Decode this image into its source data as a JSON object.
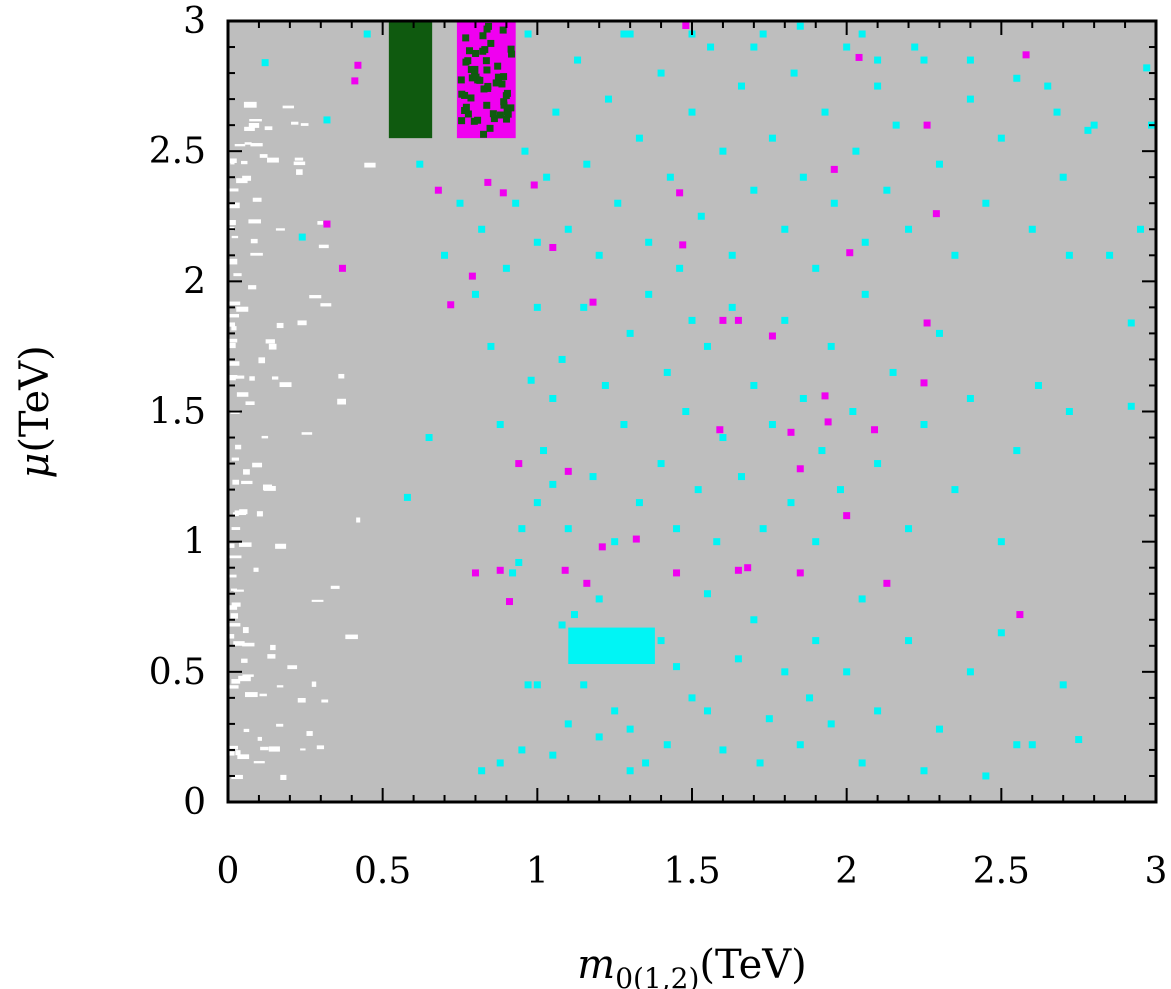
{
  "chart_data": {
    "type": "scatter",
    "title": "",
    "xlabel": {
      "symbol": "m",
      "subscript": "0(1,2)",
      "unit": "(TeV)"
    },
    "ylabel": {
      "symbol": "μ",
      "unit": "(TeV)"
    },
    "xlim": [
      0,
      3
    ],
    "ylim": [
      0,
      3
    ],
    "x_ticks": [
      0,
      0.5,
      1,
      1.5,
      2,
      2.5,
      3
    ],
    "y_ticks": [
      0,
      0.5,
      1,
      1.5,
      2,
      2.5,
      3
    ],
    "x_tick_labels": [
      "0",
      "0.5",
      "1",
      "1.5",
      "2",
      "2.5",
      "3"
    ],
    "y_tick_labels": [
      "0",
      "0.5",
      "1",
      "1.5",
      "2",
      "2.5",
      "3"
    ],
    "colors": {
      "background_region": "#bebebe",
      "excluded": "#ffffff",
      "cyan": "#00f5f5",
      "magenta": "#f000f0",
      "green": "#0f5a0f"
    },
    "regions": [
      {
        "name": "dark-green-cluster",
        "color": "green",
        "x": [
          0.52,
          0.66
        ],
        "y": [
          2.55,
          3.0
        ]
      },
      {
        "name": "magenta-cluster",
        "color": "magenta",
        "x": [
          0.74,
          0.93
        ],
        "y": [
          2.55,
          3.0
        ]
      },
      {
        "name": "cyan-cluster",
        "color": "cyan",
        "x": [
          1.1,
          1.38
        ],
        "y": [
          0.53,
          0.67
        ]
      }
    ],
    "series": [
      {
        "name": "cyan points",
        "color": "cyan",
        "points": [
          [
            0.92,
            0.88
          ],
          [
            0.94,
            0.92
          ],
          [
            0.97,
            0.45
          ],
          [
            1.0,
            0.45
          ],
          [
            1.05,
            1.22
          ],
          [
            1.08,
            0.68
          ],
          [
            1.12,
            0.72
          ],
          [
            1.16,
            0.55
          ],
          [
            1.2,
            0.78
          ],
          [
            1.25,
            0.35
          ],
          [
            1.3,
            0.28
          ],
          [
            1.35,
            0.15
          ],
          [
            1.4,
            0.62
          ],
          [
            1.45,
            0.52
          ],
          [
            1.5,
            0.4
          ],
          [
            1.55,
            0.8
          ],
          [
            1.6,
            0.2
          ],
          [
            1.65,
            0.55
          ],
          [
            1.7,
            0.7
          ],
          [
            1.75,
            0.32
          ],
          [
            1.8,
            0.5
          ],
          [
            1.85,
            0.22
          ],
          [
            1.9,
            0.62
          ],
          [
            1.95,
            0.3
          ],
          [
            2.0,
            0.5
          ],
          [
            2.05,
            0.78
          ],
          [
            2.1,
            0.35
          ],
          [
            2.2,
            0.62
          ],
          [
            2.3,
            0.28
          ],
          [
            2.4,
            0.5
          ],
          [
            2.5,
            0.65
          ],
          [
            2.6,
            0.22
          ],
          [
            2.7,
            0.45
          ],
          [
            2.75,
            0.24
          ],
          [
            0.82,
            0.12
          ],
          [
            0.88,
            0.15
          ],
          [
            0.95,
            0.2
          ],
          [
            1.05,
            0.18
          ],
          [
            1.1,
            0.3
          ],
          [
            1.15,
            0.45
          ],
          [
            1.2,
            0.25
          ],
          [
            1.3,
            0.12
          ],
          [
            1.42,
            0.22
          ],
          [
            1.55,
            0.35
          ],
          [
            1.72,
            0.15
          ],
          [
            1.88,
            0.4
          ],
          [
            2.05,
            0.15
          ],
          [
            2.25,
            0.12
          ],
          [
            2.45,
            0.1
          ],
          [
            2.55,
            0.22
          ],
          [
            0.95,
            1.05
          ],
          [
            1.0,
            1.15
          ],
          [
            1.02,
            1.35
          ],
          [
            1.05,
            1.55
          ],
          [
            1.08,
            1.7
          ],
          [
            1.1,
            1.05
          ],
          [
            1.15,
            1.9
          ],
          [
            1.18,
            1.25
          ],
          [
            1.22,
            1.6
          ],
          [
            1.25,
            1.0
          ],
          [
            1.28,
            1.45
          ],
          [
            1.3,
            1.8
          ],
          [
            1.33,
            1.15
          ],
          [
            1.36,
            1.95
          ],
          [
            1.4,
            1.3
          ],
          [
            1.42,
            1.65
          ],
          [
            1.45,
            1.05
          ],
          [
            1.48,
            1.5
          ],
          [
            1.5,
            1.85
          ],
          [
            1.52,
            1.2
          ],
          [
            1.55,
            1.75
          ],
          [
            1.58,
            1.0
          ],
          [
            1.6,
            1.4
          ],
          [
            1.63,
            1.9
          ],
          [
            1.66,
            1.25
          ],
          [
            1.7,
            1.6
          ],
          [
            1.73,
            1.05
          ],
          [
            1.76,
            1.45
          ],
          [
            1.8,
            1.85
          ],
          [
            1.82,
            1.15
          ],
          [
            1.86,
            1.55
          ],
          [
            1.9,
            1.0
          ],
          [
            1.92,
            1.35
          ],
          [
            1.95,
            1.75
          ],
          [
            1.98,
            1.2
          ],
          [
            2.02,
            1.5
          ],
          [
            2.06,
            1.95
          ],
          [
            2.1,
            1.3
          ],
          [
            2.15,
            1.65
          ],
          [
            2.2,
            1.05
          ],
          [
            2.25,
            1.45
          ],
          [
            2.3,
            1.8
          ],
          [
            2.35,
            1.2
          ],
          [
            2.4,
            1.55
          ],
          [
            2.5,
            1.0
          ],
          [
            2.55,
            1.35
          ],
          [
            2.62,
            1.6
          ],
          [
            2.72,
            1.5
          ],
          [
            2.92,
            1.52
          ],
          [
            2.92,
            1.84
          ],
          [
            0.9,
            2.05
          ],
          [
            0.93,
            2.3
          ],
          [
            0.96,
            2.5
          ],
          [
            1.0,
            2.15
          ],
          [
            1.03,
            2.4
          ],
          [
            1.06,
            2.65
          ],
          [
            1.1,
            2.2
          ],
          [
            1.13,
            2.85
          ],
          [
            1.16,
            2.45
          ],
          [
            1.2,
            2.1
          ],
          [
            1.23,
            2.7
          ],
          [
            1.26,
            2.3
          ],
          [
            1.3,
            2.95
          ],
          [
            1.33,
            2.55
          ],
          [
            1.36,
            2.15
          ],
          [
            1.4,
            2.8
          ],
          [
            1.43,
            2.4
          ],
          [
            1.46,
            2.05
          ],
          [
            1.5,
            2.65
          ],
          [
            1.53,
            2.25
          ],
          [
            1.56,
            2.9
          ],
          [
            1.6,
            2.5
          ],
          [
            1.63,
            2.1
          ],
          [
            1.66,
            2.75
          ],
          [
            1.7,
            2.35
          ],
          [
            1.73,
            2.95
          ],
          [
            1.76,
            2.55
          ],
          [
            1.8,
            2.2
          ],
          [
            1.83,
            2.8
          ],
          [
            1.86,
            2.4
          ],
          [
            1.9,
            2.05
          ],
          [
            1.93,
            2.65
          ],
          [
            1.96,
            2.3
          ],
          [
            2.0,
            2.9
          ],
          [
            2.03,
            2.5
          ],
          [
            2.06,
            2.15
          ],
          [
            2.1,
            2.75
          ],
          [
            2.13,
            2.35
          ],
          [
            2.16,
            2.6
          ],
          [
            2.2,
            2.2
          ],
          [
            2.25,
            2.85
          ],
          [
            2.3,
            2.45
          ],
          [
            2.35,
            2.1
          ],
          [
            2.4,
            2.7
          ],
          [
            2.45,
            2.3
          ],
          [
            2.5,
            2.55
          ],
          [
            2.6,
            2.2
          ],
          [
            2.65,
            2.75
          ],
          [
            2.7,
            2.4
          ],
          [
            2.8,
            2.6
          ],
          [
            2.85,
            2.1
          ],
          [
            2.95,
            2.2
          ],
          [
            2.72,
            2.1
          ],
          [
            0.45,
            2.95
          ],
          [
            0.62,
            2.45
          ],
          [
            0.65,
            1.4
          ],
          [
            0.7,
            2.1
          ],
          [
            0.75,
            2.3
          ],
          [
            0.8,
            1.95
          ],
          [
            0.85,
            1.75
          ],
          [
            0.58,
            1.17
          ],
          [
            0.24,
            2.17
          ],
          [
            0.12,
            2.84
          ],
          [
            0.32,
            2.62
          ],
          [
            0.82,
            2.2
          ],
          [
            0.97,
            2.95
          ],
          [
            0.88,
            1.45
          ],
          [
            0.98,
            1.62
          ],
          [
            1.0,
            1.9
          ],
          [
            1.28,
            2.95
          ],
          [
            1.5,
            2.95
          ],
          [
            1.7,
            2.9
          ],
          [
            1.85,
            2.98
          ],
          [
            2.05,
            2.95
          ],
          [
            2.1,
            2.85
          ],
          [
            2.22,
            2.9
          ],
          [
            2.4,
            2.85
          ],
          [
            2.55,
            2.78
          ],
          [
            2.68,
            2.65
          ],
          [
            2.78,
            2.58
          ],
          [
            2.97,
            2.82
          ],
          [
            3.0,
            2.6
          ]
        ]
      },
      {
        "name": "magenta points",
        "color": "magenta",
        "points": [
          [
            0.32,
            2.22
          ],
          [
            0.37,
            2.05
          ],
          [
            0.41,
            2.77
          ],
          [
            0.42,
            2.83
          ],
          [
            0.68,
            2.35
          ],
          [
            0.72,
            1.91
          ],
          [
            0.79,
            2.02
          ],
          [
            0.84,
            2.38
          ],
          [
            0.89,
            2.34
          ],
          [
            0.99,
            2.37
          ],
          [
            1.05,
            2.13
          ],
          [
            0.8,
            0.88
          ],
          [
            0.88,
            0.89
          ],
          [
            0.91,
            0.77
          ],
          [
            0.94,
            1.3
          ],
          [
            1.09,
            0.89
          ],
          [
            1.1,
            1.27
          ],
          [
            1.16,
            0.84
          ],
          [
            1.21,
            0.98
          ],
          [
            1.32,
            1.01
          ],
          [
            1.45,
            0.88
          ],
          [
            1.46,
            2.34
          ],
          [
            1.47,
            2.14
          ],
          [
            1.48,
            3.0
          ],
          [
            1.59,
            1.43
          ],
          [
            1.6,
            1.85
          ],
          [
            1.65,
            1.85
          ],
          [
            1.65,
            0.89
          ],
          [
            1.68,
            0.9
          ],
          [
            1.76,
            1.79
          ],
          [
            1.82,
            1.42
          ],
          [
            1.85,
            1.28
          ],
          [
            1.94,
            1.46
          ],
          [
            1.93,
            1.56
          ],
          [
            1.96,
            2.43
          ],
          [
            2.0,
            1.1
          ],
          [
            2.01,
            2.11
          ],
          [
            2.04,
            2.86
          ],
          [
            2.09,
            1.43
          ],
          [
            2.13,
            0.84
          ],
          [
            2.25,
            1.61
          ],
          [
            2.26,
            1.84
          ],
          [
            2.26,
            2.6
          ],
          [
            2.29,
            2.26
          ],
          [
            2.56,
            0.72
          ],
          [
            2.58,
            2.87
          ],
          [
            1.85,
            0.88
          ],
          [
            1.18,
            1.92
          ]
        ]
      }
    ]
  }
}
